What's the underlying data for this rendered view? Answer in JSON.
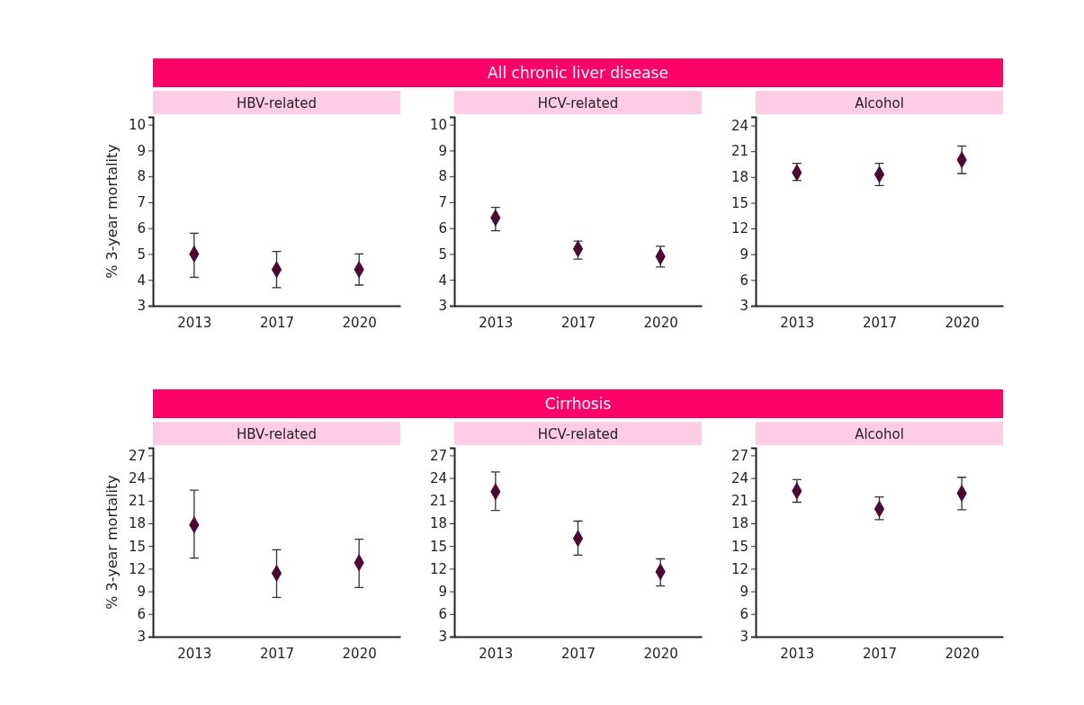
{
  "chart_data": [
    {
      "type": "scatter",
      "subtitle": "HBV-related",
      "ylabel": "% 3-year mortality",
      "categories": [
        "2013",
        "2017",
        "2020"
      ],
      "ylim": [
        3,
        10.3
      ],
      "yticks": [
        3,
        4,
        5,
        6,
        7,
        8,
        9,
        10
      ],
      "marker": "diamond",
      "series": [
        {
          "color": "#4a0a33",
          "values": [
            5.0,
            4.4,
            4.4
          ],
          "errors": [
            [
              4.1,
              5.8
            ],
            [
              3.7,
              5.1
            ],
            [
              3.8,
              5.0
            ]
          ]
        }
      ]
    },
    {
      "type": "scatter",
      "title": "All chronic liver disease",
      "subtitle": "HCV-related",
      "categories": [
        "2013",
        "2017",
        "2020"
      ],
      "ylim": [
        3,
        10.3
      ],
      "yticks": [
        3,
        4,
        5,
        6,
        7,
        8,
        9,
        10
      ],
      "marker": "diamond",
      "series": [
        {
          "color": "#4a0a33",
          "values": [
            6.4,
            5.2,
            4.9
          ],
          "errors": [
            [
              5.9,
              6.8
            ],
            [
              4.8,
              5.5
            ],
            [
              4.5,
              5.3
            ]
          ]
        }
      ]
    },
    {
      "type": "scatter",
      "subtitle": "Alcohol",
      "categories": [
        "2013",
        "2017",
        "2020"
      ],
      "ylim": [
        3,
        25
      ],
      "yticks": [
        3,
        6,
        9,
        12,
        15,
        18,
        21,
        24
      ],
      "marker": "diamond",
      "series": [
        {
          "color": "#4a0a33",
          "values": [
            18.5,
            18.3,
            20.0
          ],
          "errors": [
            [
              17.6,
              19.6
            ],
            [
              17.0,
              19.6
            ],
            [
              18.4,
              21.6
            ]
          ]
        }
      ]
    },
    {
      "type": "scatter",
      "subtitle": "HBV-related",
      "ylabel": "% 3-year mortality",
      "categories": [
        "2013",
        "2017",
        "2020"
      ],
      "ylim": [
        3,
        28
      ],
      "yticks": [
        3,
        6,
        9,
        12,
        15,
        18,
        21,
        24,
        27
      ],
      "marker": "diamond",
      "series": [
        {
          "color": "#4a0a33",
          "values": [
            17.8,
            11.4,
            12.8
          ],
          "errors": [
            [
              13.4,
              22.4
            ],
            [
              8.2,
              14.5
            ],
            [
              9.5,
              15.9
            ]
          ]
        }
      ]
    },
    {
      "type": "scatter",
      "title": "Cirrhosis",
      "subtitle": "HCV-related",
      "categories": [
        "2013",
        "2017",
        "2020"
      ],
      "ylim": [
        3,
        28
      ],
      "yticks": [
        3,
        6,
        9,
        12,
        15,
        18,
        21,
        24,
        27
      ],
      "marker": "diamond",
      "series": [
        {
          "color": "#4a0a33",
          "values": [
            22.2,
            16.0,
            11.6
          ],
          "errors": [
            [
              19.7,
              24.8
            ],
            [
              13.8,
              18.3
            ],
            [
              9.7,
              13.3
            ]
          ]
        }
      ]
    },
    {
      "type": "scatter",
      "subtitle": "Alcohol",
      "categories": [
        "2013",
        "2017",
        "2020"
      ],
      "ylim": [
        3,
        28
      ],
      "yticks": [
        3,
        6,
        9,
        12,
        15,
        18,
        21,
        24,
        27
      ],
      "marker": "diamond",
      "series": [
        {
          "color": "#4a0a33",
          "values": [
            22.3,
            19.9,
            22.0
          ],
          "errors": [
            [
              20.8,
              23.8
            ],
            [
              18.5,
              21.5
            ],
            [
              19.8,
              24.1
            ]
          ]
        }
      ]
    }
  ]
}
